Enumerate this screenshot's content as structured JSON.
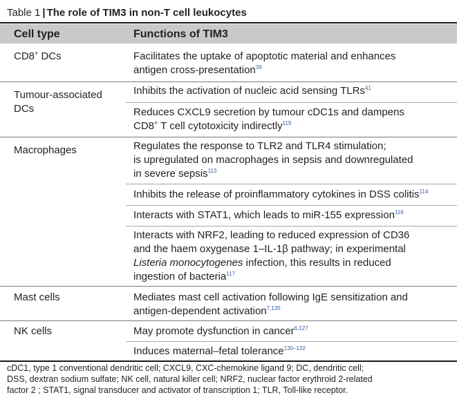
{
  "table": {
    "label": "Table 1",
    "separator": "|",
    "title": "The role of TIM3 in non-T cell leukocytes",
    "header": {
      "col1": "Cell type",
      "col2": "Functions of TIM3"
    }
  },
  "rows": {
    "cd8": {
      "type_text": "CD8",
      "type_sup": "+",
      "type_tail": " DCs",
      "fns": [
        {
          "lines": [
            "Facilitates the uptake of apoptotic material and enhances",
            "antigen cross-presentation"
          ],
          "ref": "39"
        }
      ]
    },
    "tadc": {
      "type_lines": [
        "Tumour-associated",
        "DCs"
      ],
      "fns": [
        {
          "lines": [
            "Inhibits the activation of nucleic acid sensing TLRs"
          ],
          "ref": "41"
        },
        {
          "line1": "Reduces CXCL9 secretion by tumour cDC1s and dampens",
          "line2_a": "CD8",
          "line2_sup": "+",
          "line2_b": " T cell cytotoxicity indirectly",
          "ref": "119"
        }
      ]
    },
    "macro": {
      "type_lines": [
        "Macrophages"
      ],
      "fns": [
        {
          "lines": [
            "Regulates the response to TLR2 and TLR4 stimulation;",
            "is upregulated on macrophages in sepsis and downregulated",
            "in severe sepsis"
          ],
          "ref": "113"
        },
        {
          "lines": [
            "Inhibits the release of proinflammatory cytokines in DSS colitis"
          ],
          "ref": "114"
        },
        {
          "lines": [
            "Interacts with STAT1, which leads to miR-155 expression"
          ],
          "ref": "116"
        },
        {
          "line1": "Interacts with NRF2, leading to reduced expression of CD36",
          "line2": "and the haem oxygenase 1–IL-1β pathway; in experimental",
          "line3_italic": "Listeria monocytogenes",
          "line3_rest": " infection, this results in reduced",
          "line4": "ingestion of bacteria",
          "ref": "117"
        }
      ]
    },
    "mast": {
      "type_lines": [
        "Mast cells"
      ],
      "fns": [
        {
          "lines": [
            "Mediates mast cell activation following IgE sensitization and",
            "antigen-dependent activation"
          ],
          "ref": "7,135"
        }
      ]
    },
    "nk": {
      "type_lines": [
        "NK cells"
      ],
      "fns": [
        {
          "lines": [
            "May promote dysfunction in cancer"
          ],
          "ref": "6,127"
        },
        {
          "lines": [
            "Induces maternal–fetal tolerance"
          ],
          "ref": "130–132"
        }
      ]
    }
  },
  "footnote": {
    "lines": [
      "cDC1, type 1 conventional dendritic cell; CXCL9, CXC-chemokine ligand 9; DC, dendritic cell;",
      "DSS, dextran sodium sulfate; NK cell, natural killer cell; NRF2, nuclear factor erythroid 2-related",
      "factor 2 ; STAT1, signal transducer and activator of transcription 1; TLR, Toll-like receptor."
    ]
  },
  "colors": {
    "header_bg": "#c9c9c9",
    "ref": "#3b5fa8",
    "text": "#231f20"
  }
}
